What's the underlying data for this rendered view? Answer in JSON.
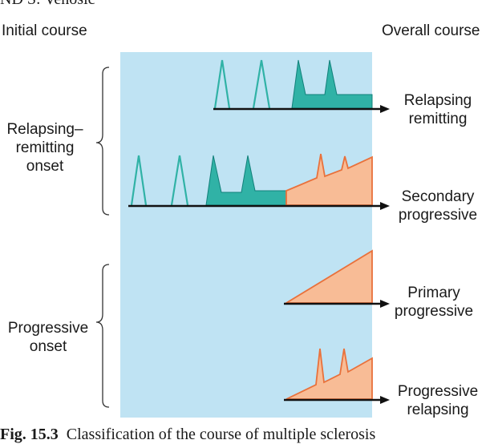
{
  "heading_partial": "ND S: Venosic",
  "headers": {
    "initial_course": "Initial course",
    "overall_course": "Overall course"
  },
  "groups": {
    "relapsing_onset": [
      "Relapsing–",
      "remitting",
      "onset"
    ],
    "progressive_onset": [
      "Progressive",
      "onset"
    ]
  },
  "courses": {
    "relapsing_remitting": [
      "Relapsing",
      "remitting"
    ],
    "secondary_progressive": [
      "Secondary",
      "progressive"
    ],
    "primary_progressive": [
      "Primary",
      "progressive"
    ],
    "progressive_relapsing": [
      "Progressive",
      "relapsing"
    ]
  },
  "caption": {
    "label": "Fig. 15.3",
    "text": "Classification of the course of multiple sclerosis"
  },
  "colors": {
    "panel": "#bfe3f3",
    "teal": "#30b2a6",
    "teal_stroke": "#11807a",
    "orange": "#f8bc96",
    "orange_stroke": "#e9713b",
    "axis": "#111111"
  }
}
